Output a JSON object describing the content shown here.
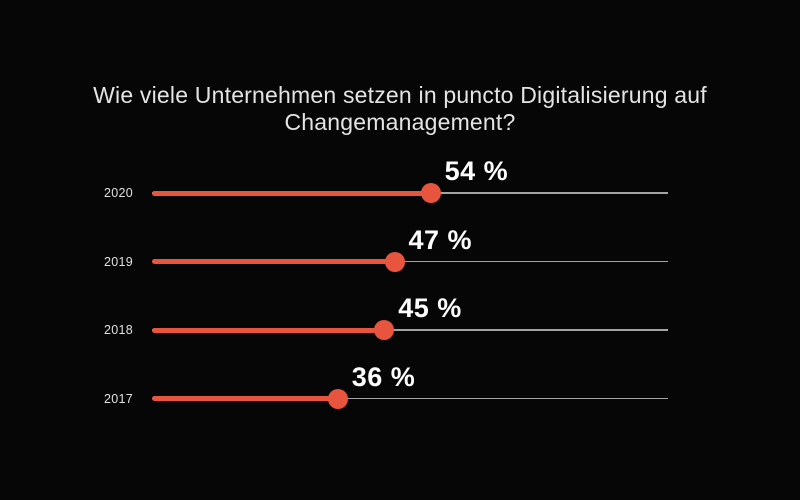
{
  "title": "Wie viele Unternehmen setzen in puncto Digitalisierung auf Changemanagement?",
  "colors": {
    "background": "#060606",
    "accent": "#e8553e",
    "track": "#a3a3a3",
    "title_text": "#e4e4e4",
    "value_text": "#fdfdfd",
    "year_text": "#e0e0e0"
  },
  "chart_data": {
    "type": "bar",
    "subtype": "lollipop-horizontal",
    "title": "Wie viele Unternehmen setzen in puncto Digitalisierung auf Changemanagement?",
    "categories": [
      "2020",
      "2019",
      "2018",
      "2017"
    ],
    "values": [
      54,
      47,
      45,
      36
    ],
    "value_labels": [
      "54 %",
      "47 %",
      "45 %",
      "36 %"
    ],
    "xlabel": "",
    "ylabel": "",
    "xlim": [
      0,
      100
    ],
    "unit": "percent",
    "grid": false,
    "legend": false
  }
}
